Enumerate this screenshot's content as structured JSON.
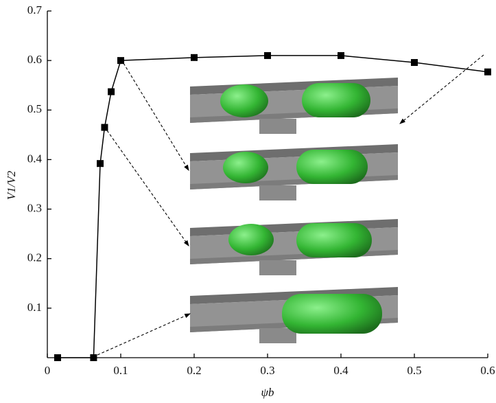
{
  "chart_data": {
    "type": "line",
    "xlabel": "ψb",
    "ylabel": "V1/V2",
    "x": [
      0.014,
      0.063,
      0.072,
      0.078,
      0.087,
      0.1,
      0.2,
      0.3,
      0.4,
      0.5,
      0.6
    ],
    "series": [
      {
        "color": "#000000",
        "values": [
          0,
          0,
          0.392,
          0.465,
          0.537,
          0.6,
          0.606,
          0.61,
          0.61,
          0.596,
          0.577
        ]
      }
    ],
    "xlim": [
      0,
      0.6
    ],
    "xticks": [
      0,
      0.1,
      0.2,
      0.3,
      0.4,
      0.5,
      0.6
    ],
    "ylim": [
      0,
      0.7
    ],
    "yticks": [
      0.1,
      0.2,
      0.3,
      0.4,
      0.5,
      0.6,
      0.7
    ]
  }
}
